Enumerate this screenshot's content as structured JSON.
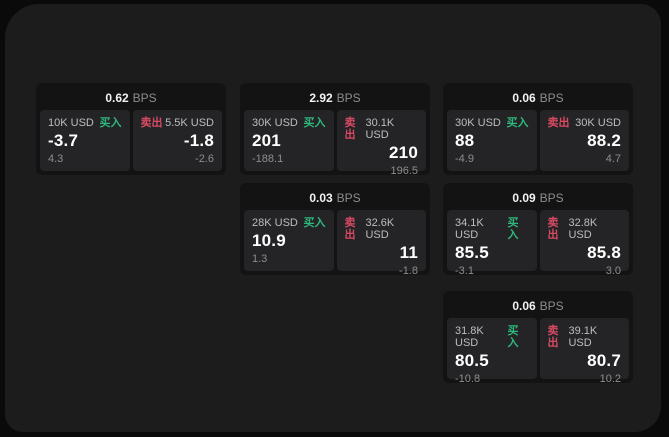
{
  "board": {
    "bps_unit": "BPS",
    "buy_label": "买入",
    "sell_label": "卖出"
  },
  "colors": {
    "buy_green": "#2eb87c",
    "sell_red": "#d84a62",
    "panel_bg": "#1c1c1d",
    "card_bg": "#131314",
    "pane_bg": "#242426",
    "page_bg": "#0a0a0b"
  },
  "cards": [
    {
      "bps": "0.62",
      "buy": {
        "notional": "10K USD",
        "price": "-3.7",
        "delta": "4.3"
      },
      "sell": {
        "notional": "5.5K USD",
        "price": "-1.8",
        "delta": "-2.6"
      }
    },
    {
      "bps": "2.92",
      "buy": {
        "notional": "30K USD",
        "price": "201",
        "delta": "-188.1"
      },
      "sell": {
        "notional": "30.1K USD",
        "price": "210",
        "delta": "196.5"
      }
    },
    {
      "bps": "0.06",
      "buy": {
        "notional": "30K USD",
        "price": "88",
        "delta": "-4.9"
      },
      "sell": {
        "notional": "30K USD",
        "price": "88.2",
        "delta": "4.7"
      }
    },
    {
      "bps": "0.03",
      "buy": {
        "notional": "28K USD",
        "price": "10.9",
        "delta": "1.3"
      },
      "sell": {
        "notional": "32.6K USD",
        "price": "11",
        "delta": "-1.8"
      }
    },
    {
      "bps": "0.09",
      "buy": {
        "notional": "34.1K USD",
        "price": "85.5",
        "delta": "-3.1"
      },
      "sell": {
        "notional": "32.8K USD",
        "price": "85.8",
        "delta": "3.0"
      }
    },
    {
      "bps": "0.06",
      "buy": {
        "notional": "31.8K USD",
        "price": "80.5",
        "delta": "-10.8"
      },
      "sell": {
        "notional": "39.1K USD",
        "price": "80.7",
        "delta": "10.2"
      }
    }
  ]
}
